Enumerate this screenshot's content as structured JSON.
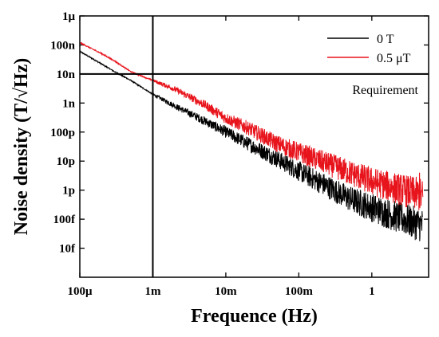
{
  "chart_data": {
    "type": "line",
    "xlabel": "Frequence (Hz)",
    "ylabel": "Noise density (T/√Hz)",
    "xscale": "log",
    "yscale": "log",
    "xlim": [
      0.0001,
      6
    ],
    "ylim": [
      1e-15,
      1e-06
    ],
    "x_ticks": [
      0.0001,
      0.001,
      0.01,
      0.1,
      1
    ],
    "x_tick_labels": [
      "100μ",
      "1m",
      "10m",
      "100m",
      "1"
    ],
    "y_ticks": [
      1e-06,
      1e-07,
      1e-08,
      1e-09,
      1e-10,
      1e-11,
      1e-12,
      1e-13,
      1e-14
    ],
    "y_tick_labels": [
      "1μ",
      "100n",
      "10n",
      "1n",
      "100p",
      "10p",
      "1p",
      "100f",
      "10f"
    ],
    "grid": false,
    "legend_position": "top-right",
    "series": [
      {
        "name": "0 T",
        "color": "#000000",
        "x": [
          0.0001,
          0.0002,
          0.0003,
          0.0005,
          0.001,
          0.002,
          0.005,
          0.01,
          0.02,
          0.05,
          0.1,
          0.2,
          0.5,
          1,
          2,
          5
        ],
        "y": [
          6e-08,
          2.2e-08,
          1.2e-08,
          6e-09,
          2e-09,
          8e-10,
          2.5e-10,
          1e-10,
          4e-11,
          1.2e-11,
          4.5e-12,
          1.8e-12,
          5e-13,
          2.5e-13,
          1.3e-13,
          6e-14
        ],
        "noise_band": [
          0.001,
          5
        ]
      },
      {
        "name": "0.5 μT",
        "color": "#e8141c",
        "x": [
          0.0001,
          0.0002,
          0.0003,
          0.0005,
          0.001,
          0.002,
          0.005,
          0.01,
          0.02,
          0.05,
          0.1,
          0.2,
          0.5,
          1,
          2,
          4.5,
          5
        ],
        "y": [
          1.2e-07,
          5e-08,
          2.8e-08,
          1.2e-08,
          6e-09,
          3e-09,
          9e-10,
          3e-10,
          1.4e-10,
          4e-11,
          2e-11,
          1e-11,
          4e-12,
          2e-12,
          1.2e-12,
          7e-13,
          6e-13
        ],
        "noise_band": [
          0.001,
          5
        ],
        "spike": {
          "x": 4.5,
          "y": 4e-12
        }
      }
    ],
    "annotations": [
      {
        "type": "hline",
        "y": 1e-08,
        "label": "Requirement"
      },
      {
        "type": "vline",
        "x": 0.001
      }
    ]
  }
}
